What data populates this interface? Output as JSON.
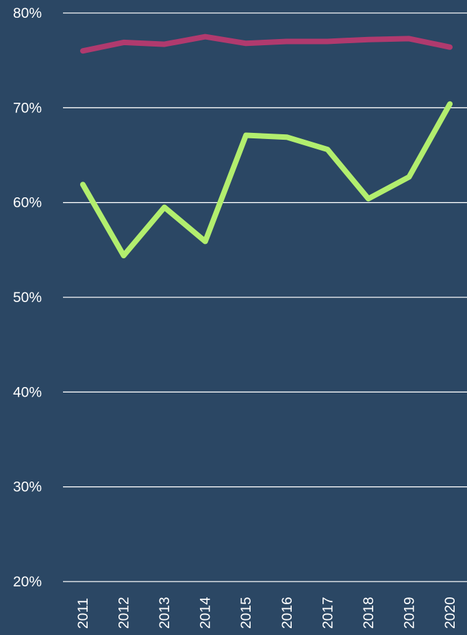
{
  "chart_data": {
    "type": "line",
    "title": "",
    "xlabel": "",
    "ylabel": "",
    "x": [
      "2011",
      "2012",
      "2013",
      "2014",
      "2015",
      "2016",
      "2017",
      "2018",
      "2019",
      "2020"
    ],
    "ylim": [
      20,
      80
    ],
    "yticks": [
      20,
      30,
      40,
      50,
      60,
      70,
      80
    ],
    "ytick_labels": [
      "20%",
      "30%",
      "40%",
      "50%",
      "60%",
      "70%",
      "80%"
    ],
    "grid": true,
    "legend": "none",
    "series": [
      {
        "color": "#b03a6e",
        "values": [
          76.0,
          76.9,
          76.7,
          77.5,
          76.8,
          77.0,
          77.0,
          77.2,
          77.3,
          76.4
        ]
      },
      {
        "color": "#b2ee6e",
        "values": [
          61.9,
          54.4,
          59.5,
          55.9,
          67.1,
          66.9,
          65.6,
          60.4,
          62.7,
          70.4
        ]
      }
    ],
    "background": "#2b4764"
  }
}
